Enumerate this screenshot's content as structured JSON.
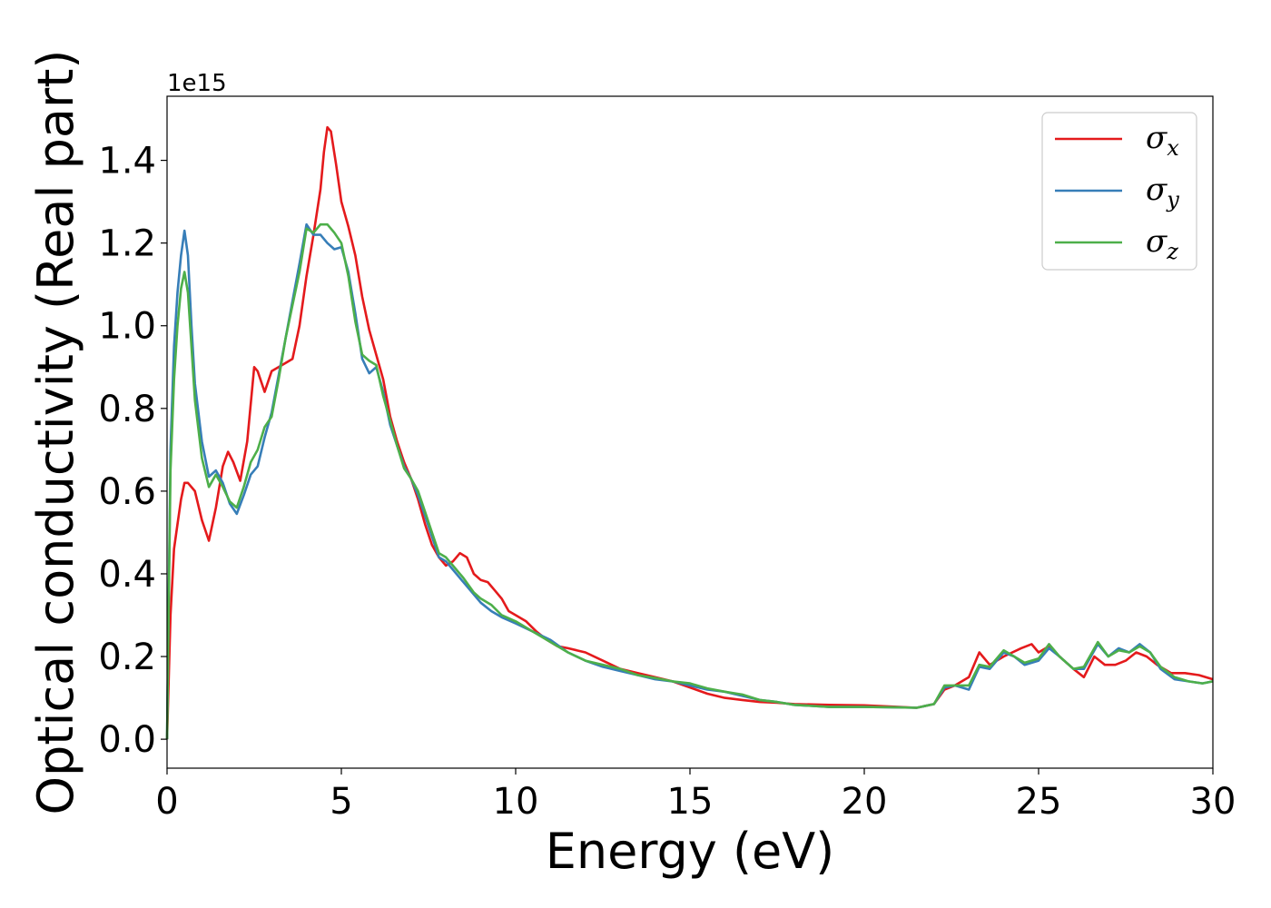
{
  "chart_data": {
    "type": "line",
    "title": "",
    "xlabel": "Energy (eV)",
    "ylabel": "Optical conductivity (Real part)",
    "y_offset_label": "1e15",
    "y_scale": 1000000000000000.0,
    "xlim": [
      0,
      30
    ],
    "ylim": [
      -0.07,
      1.555
    ],
    "x_ticks": [
      0,
      5,
      10,
      15,
      20,
      25,
      30
    ],
    "y_ticks": [
      0.0,
      0.2,
      0.4,
      0.6,
      0.8,
      1.0,
      1.2,
      1.4
    ],
    "x_tick_labels": [
      "0",
      "5",
      "10",
      "15",
      "20",
      "25",
      "30"
    ],
    "y_tick_labels": [
      "0.0",
      "0.2",
      "0.4",
      "0.6",
      "0.8",
      "1.0",
      "1.2",
      "1.4"
    ],
    "grid": false,
    "legend_position": "top-right",
    "series": [
      {
        "name": "σ",
        "subscript": "x",
        "color": "#e41a1c",
        "points": [
          [
            0,
            0
          ],
          [
            0.1,
            0.3
          ],
          [
            0.2,
            0.46
          ],
          [
            0.3,
            0.52
          ],
          [
            0.4,
            0.58
          ],
          [
            0.5,
            0.62
          ],
          [
            0.6,
            0.62
          ],
          [
            0.8,
            0.6
          ],
          [
            1.0,
            0.53
          ],
          [
            1.2,
            0.48
          ],
          [
            1.4,
            0.56
          ],
          [
            1.6,
            0.66
          ],
          [
            1.75,
            0.695
          ],
          [
            1.9,
            0.67
          ],
          [
            2.1,
            0.625
          ],
          [
            2.3,
            0.72
          ],
          [
            2.5,
            0.9
          ],
          [
            2.6,
            0.89
          ],
          [
            2.8,
            0.84
          ],
          [
            3.0,
            0.89
          ],
          [
            3.2,
            0.9
          ],
          [
            3.4,
            0.91
          ],
          [
            3.6,
            0.92
          ],
          [
            3.8,
            1.0
          ],
          [
            4.0,
            1.12
          ],
          [
            4.2,
            1.22
          ],
          [
            4.4,
            1.33
          ],
          [
            4.5,
            1.42
          ],
          [
            4.6,
            1.48
          ],
          [
            4.7,
            1.47
          ],
          [
            4.85,
            1.39
          ],
          [
            5.0,
            1.3
          ],
          [
            5.2,
            1.24
          ],
          [
            5.4,
            1.17
          ],
          [
            5.6,
            1.07
          ],
          [
            5.8,
            0.99
          ],
          [
            6.0,
            0.93
          ],
          [
            6.2,
            0.87
          ],
          [
            6.4,
            0.78
          ],
          [
            6.6,
            0.72
          ],
          [
            6.8,
            0.67
          ],
          [
            7.0,
            0.63
          ],
          [
            7.2,
            0.58
          ],
          [
            7.4,
            0.52
          ],
          [
            7.6,
            0.47
          ],
          [
            7.8,
            0.44
          ],
          [
            8.0,
            0.42
          ],
          [
            8.2,
            0.43
          ],
          [
            8.4,
            0.45
          ],
          [
            8.6,
            0.44
          ],
          [
            8.8,
            0.4
          ],
          [
            9.0,
            0.385
          ],
          [
            9.2,
            0.38
          ],
          [
            9.4,
            0.36
          ],
          [
            9.6,
            0.34
          ],
          [
            9.8,
            0.31
          ],
          [
            10.0,
            0.3
          ],
          [
            10.3,
            0.285
          ],
          [
            10.6,
            0.26
          ],
          [
            10.9,
            0.24
          ],
          [
            11.2,
            0.225
          ],
          [
            11.5,
            0.22
          ],
          [
            12.0,
            0.21
          ],
          [
            12.5,
            0.19
          ],
          [
            13.0,
            0.17
          ],
          [
            13.5,
            0.16
          ],
          [
            14.0,
            0.15
          ],
          [
            14.5,
            0.14
          ],
          [
            15.0,
            0.125
          ],
          [
            15.5,
            0.11
          ],
          [
            16.0,
            0.1
          ],
          [
            16.5,
            0.095
          ],
          [
            17.0,
            0.09
          ],
          [
            17.5,
            0.088
          ],
          [
            18.0,
            0.085
          ],
          [
            19.0,
            0.083
          ],
          [
            20.0,
            0.082
          ],
          [
            21.0,
            0.078
          ],
          [
            21.5,
            0.076
          ],
          [
            22.0,
            0.085
          ],
          [
            22.3,
            0.12
          ],
          [
            22.6,
            0.13
          ],
          [
            23.0,
            0.15
          ],
          [
            23.3,
            0.21
          ],
          [
            23.6,
            0.18
          ],
          [
            24.0,
            0.2
          ],
          [
            24.5,
            0.22
          ],
          [
            24.8,
            0.23
          ],
          [
            25.0,
            0.21
          ],
          [
            25.3,
            0.225
          ],
          [
            25.6,
            0.2
          ],
          [
            26.0,
            0.17
          ],
          [
            26.3,
            0.15
          ],
          [
            26.6,
            0.2
          ],
          [
            26.9,
            0.18
          ],
          [
            27.2,
            0.18
          ],
          [
            27.5,
            0.19
          ],
          [
            27.8,
            0.21
          ],
          [
            28.1,
            0.2
          ],
          [
            28.4,
            0.18
          ],
          [
            28.8,
            0.16
          ],
          [
            29.2,
            0.16
          ],
          [
            29.6,
            0.155
          ],
          [
            30.0,
            0.145
          ]
        ]
      },
      {
        "name": "σ",
        "subscript": "y",
        "color": "#377eb8",
        "points": [
          [
            0,
            0
          ],
          [
            0.1,
            0.7
          ],
          [
            0.2,
            0.95
          ],
          [
            0.3,
            1.08
          ],
          [
            0.4,
            1.17
          ],
          [
            0.5,
            1.23
          ],
          [
            0.6,
            1.17
          ],
          [
            0.7,
            1.0
          ],
          [
            0.8,
            0.86
          ],
          [
            1.0,
            0.72
          ],
          [
            1.2,
            0.635
          ],
          [
            1.4,
            0.65
          ],
          [
            1.6,
            0.62
          ],
          [
            1.8,
            0.57
          ],
          [
            2.0,
            0.545
          ],
          [
            2.2,
            0.59
          ],
          [
            2.4,
            0.64
          ],
          [
            2.6,
            0.66
          ],
          [
            2.8,
            0.73
          ],
          [
            3.0,
            0.79
          ],
          [
            3.2,
            0.88
          ],
          [
            3.4,
            0.97
          ],
          [
            3.6,
            1.06
          ],
          [
            3.8,
            1.15
          ],
          [
            4.0,
            1.245
          ],
          [
            4.2,
            1.22
          ],
          [
            4.4,
            1.22
          ],
          [
            4.6,
            1.2
          ],
          [
            4.8,
            1.185
          ],
          [
            5.0,
            1.19
          ],
          [
            5.2,
            1.13
          ],
          [
            5.4,
            1.03
          ],
          [
            5.6,
            0.92
          ],
          [
            5.8,
            0.885
          ],
          [
            6.0,
            0.9
          ],
          [
            6.2,
            0.84
          ],
          [
            6.4,
            0.76
          ],
          [
            6.6,
            0.71
          ],
          [
            6.8,
            0.66
          ],
          [
            7.0,
            0.63
          ],
          [
            7.2,
            0.59
          ],
          [
            7.4,
            0.54
          ],
          [
            7.6,
            0.49
          ],
          [
            7.8,
            0.44
          ],
          [
            8.0,
            0.43
          ],
          [
            8.2,
            0.41
          ],
          [
            8.5,
            0.38
          ],
          [
            8.8,
            0.35
          ],
          [
            9.0,
            0.33
          ],
          [
            9.3,
            0.31
          ],
          [
            9.6,
            0.295
          ],
          [
            10.0,
            0.28
          ],
          [
            10.5,
            0.26
          ],
          [
            11.0,
            0.24
          ],
          [
            11.5,
            0.21
          ],
          [
            12.0,
            0.19
          ],
          [
            12.5,
            0.175
          ],
          [
            13.0,
            0.165
          ],
          [
            13.5,
            0.155
          ],
          [
            14.0,
            0.145
          ],
          [
            14.5,
            0.14
          ],
          [
            15.0,
            0.13
          ],
          [
            15.5,
            0.12
          ],
          [
            16.0,
            0.115
          ],
          [
            16.5,
            0.105
          ],
          [
            17.0,
            0.095
          ],
          [
            17.5,
            0.09
          ],
          [
            18.0,
            0.083
          ],
          [
            19.0,
            0.078
          ],
          [
            20.0,
            0.078
          ],
          [
            21.0,
            0.077
          ],
          [
            21.5,
            0.076
          ],
          [
            22.0,
            0.085
          ],
          [
            22.3,
            0.125
          ],
          [
            22.6,
            0.13
          ],
          [
            23.0,
            0.12
          ],
          [
            23.3,
            0.175
          ],
          [
            23.6,
            0.17
          ],
          [
            24.0,
            0.21
          ],
          [
            24.3,
            0.2
          ],
          [
            24.6,
            0.18
          ],
          [
            25.0,
            0.19
          ],
          [
            25.3,
            0.22
          ],
          [
            25.6,
            0.2
          ],
          [
            26.0,
            0.17
          ],
          [
            26.3,
            0.17
          ],
          [
            26.7,
            0.23
          ],
          [
            27.0,
            0.2
          ],
          [
            27.3,
            0.22
          ],
          [
            27.6,
            0.21
          ],
          [
            27.9,
            0.23
          ],
          [
            28.2,
            0.21
          ],
          [
            28.5,
            0.17
          ],
          [
            28.9,
            0.145
          ],
          [
            29.3,
            0.14
          ],
          [
            29.7,
            0.135
          ],
          [
            30.0,
            0.14
          ]
        ]
      },
      {
        "name": "σ",
        "subscript": "z",
        "color": "#4daf4a",
        "points": [
          [
            0,
            0
          ],
          [
            0.1,
            0.65
          ],
          [
            0.2,
            0.87
          ],
          [
            0.3,
            1.0
          ],
          [
            0.4,
            1.09
          ],
          [
            0.5,
            1.13
          ],
          [
            0.6,
            1.08
          ],
          [
            0.7,
            0.95
          ],
          [
            0.8,
            0.82
          ],
          [
            1.0,
            0.68
          ],
          [
            1.2,
            0.61
          ],
          [
            1.4,
            0.64
          ],
          [
            1.6,
            0.61
          ],
          [
            1.8,
            0.575
          ],
          [
            2.0,
            0.56
          ],
          [
            2.2,
            0.61
          ],
          [
            2.4,
            0.67
          ],
          [
            2.6,
            0.7
          ],
          [
            2.8,
            0.755
          ],
          [
            3.0,
            0.78
          ],
          [
            3.2,
            0.87
          ],
          [
            3.4,
            0.97
          ],
          [
            3.6,
            1.05
          ],
          [
            3.8,
            1.13
          ],
          [
            4.0,
            1.235
          ],
          [
            4.2,
            1.225
          ],
          [
            4.4,
            1.245
          ],
          [
            4.6,
            1.245
          ],
          [
            4.8,
            1.225
          ],
          [
            5.0,
            1.2
          ],
          [
            5.2,
            1.12
          ],
          [
            5.4,
            1.01
          ],
          [
            5.6,
            0.93
          ],
          [
            5.8,
            0.915
          ],
          [
            6.0,
            0.905
          ],
          [
            6.2,
            0.83
          ],
          [
            6.4,
            0.77
          ],
          [
            6.6,
            0.71
          ],
          [
            6.8,
            0.655
          ],
          [
            7.0,
            0.63
          ],
          [
            7.2,
            0.6
          ],
          [
            7.4,
            0.55
          ],
          [
            7.6,
            0.5
          ],
          [
            7.8,
            0.45
          ],
          [
            8.0,
            0.44
          ],
          [
            8.2,
            0.42
          ],
          [
            8.5,
            0.39
          ],
          [
            8.8,
            0.355
          ],
          [
            9.0,
            0.34
          ],
          [
            9.3,
            0.325
          ],
          [
            9.6,
            0.3
          ],
          [
            10.0,
            0.285
          ],
          [
            10.5,
            0.26
          ],
          [
            11.0,
            0.235
          ],
          [
            11.5,
            0.21
          ],
          [
            12.0,
            0.19
          ],
          [
            12.5,
            0.18
          ],
          [
            13.0,
            0.17
          ],
          [
            13.5,
            0.155
          ],
          [
            14.0,
            0.148
          ],
          [
            14.5,
            0.14
          ],
          [
            15.0,
            0.135
          ],
          [
            15.5,
            0.123
          ],
          [
            16.0,
            0.115
          ],
          [
            16.5,
            0.108
          ],
          [
            17.0,
            0.095
          ],
          [
            17.5,
            0.09
          ],
          [
            18.0,
            0.083
          ],
          [
            19.0,
            0.078
          ],
          [
            20.0,
            0.078
          ],
          [
            21.0,
            0.077
          ],
          [
            21.5,
            0.076
          ],
          [
            22.0,
            0.085
          ],
          [
            22.3,
            0.13
          ],
          [
            22.6,
            0.13
          ],
          [
            23.0,
            0.13
          ],
          [
            23.3,
            0.18
          ],
          [
            23.6,
            0.175
          ],
          [
            24.0,
            0.215
          ],
          [
            24.3,
            0.2
          ],
          [
            24.6,
            0.185
          ],
          [
            25.0,
            0.195
          ],
          [
            25.3,
            0.23
          ],
          [
            25.6,
            0.2
          ],
          [
            26.0,
            0.17
          ],
          [
            26.3,
            0.175
          ],
          [
            26.7,
            0.235
          ],
          [
            27.0,
            0.2
          ],
          [
            27.3,
            0.215
          ],
          [
            27.6,
            0.21
          ],
          [
            27.9,
            0.225
          ],
          [
            28.2,
            0.21
          ],
          [
            28.5,
            0.175
          ],
          [
            28.9,
            0.15
          ],
          [
            29.3,
            0.14
          ],
          [
            29.7,
            0.135
          ],
          [
            30.0,
            0.14
          ]
        ]
      }
    ]
  }
}
